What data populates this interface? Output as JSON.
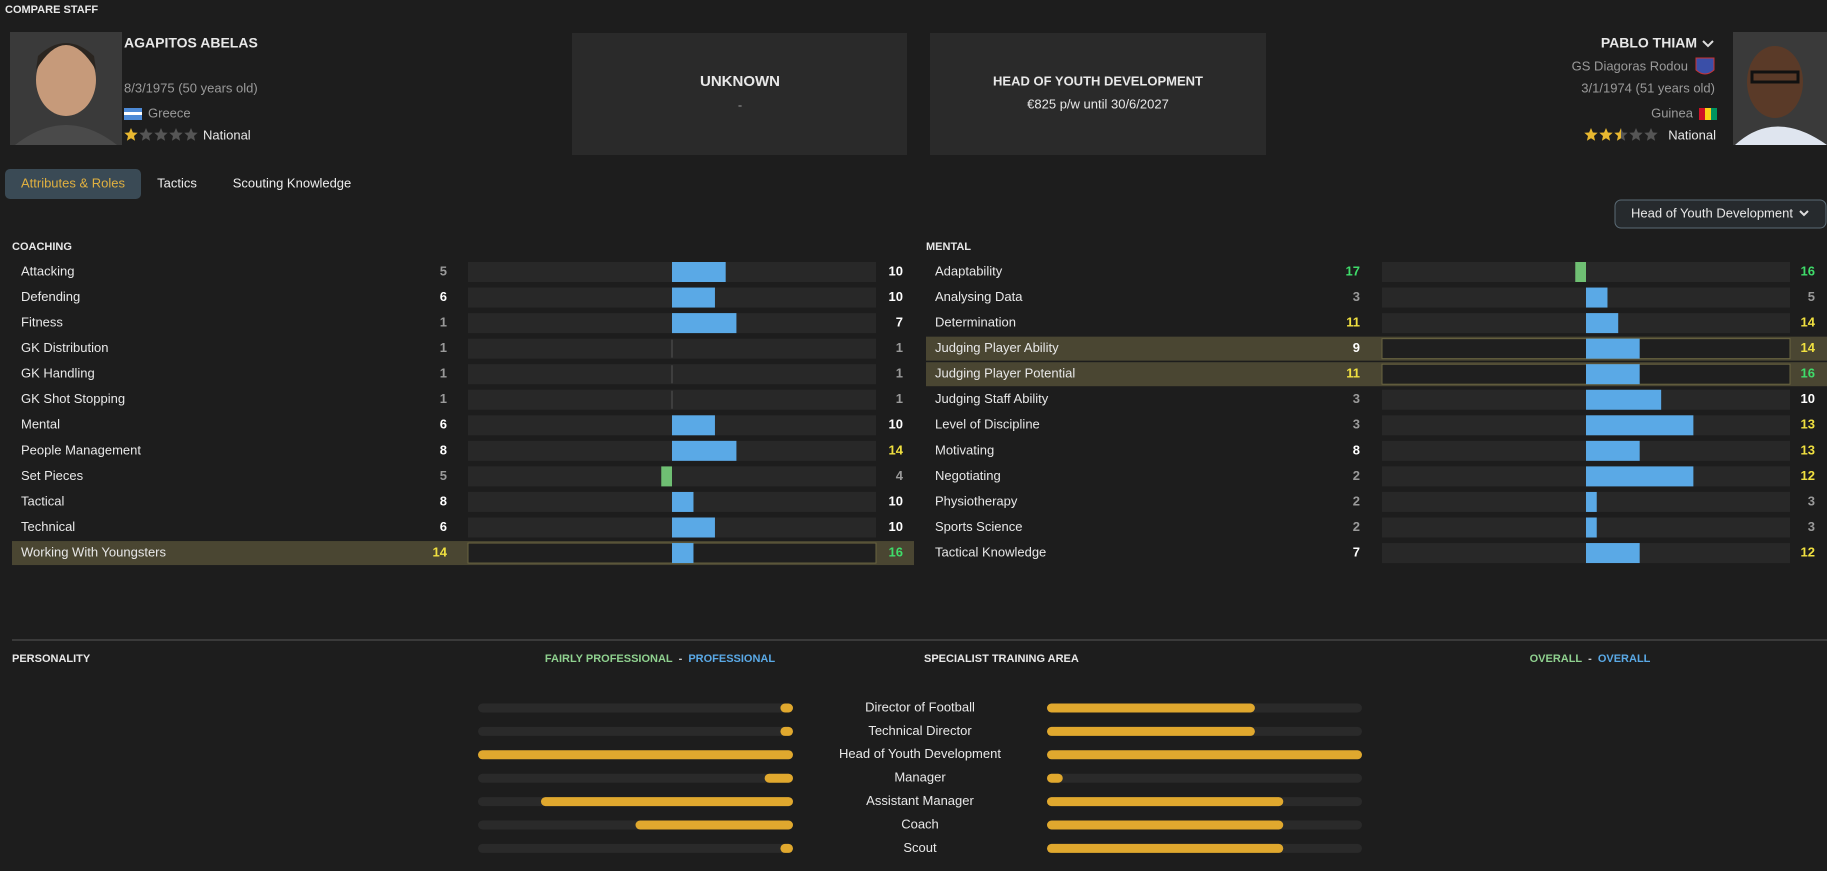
{
  "header": {
    "title": "COMPARE STAFF"
  },
  "staff": [
    {
      "name": "AGAPITOS ABELAS",
      "dob": "8/3/1975 (50 years old)",
      "nation": "Greece",
      "reputation": "National",
      "stars": 1
    },
    {
      "name": "PABLO THIAM",
      "club": "GS Diagoras Rodou",
      "dob": "3/1/1974 (51 years old)",
      "nation": "Guinea",
      "reputation": "National",
      "stars": 2.5
    }
  ],
  "cards": [
    {
      "title": "UNKNOWN",
      "detail": "-"
    },
    {
      "title": "HEAD OF YOUTH DEVELOPMENT",
      "detail": "€825 p/w until 30/6/2027"
    }
  ],
  "tabs": [
    {
      "label": "Attributes & Roles",
      "active": true
    },
    {
      "label": "Tactics"
    },
    {
      "label": "Scouting Knowledge"
    }
  ],
  "role_selector": "Head of Youth Development",
  "attribute_groups": [
    {
      "title": "COACHING",
      "rows": [
        {
          "name": "Attacking",
          "values": [
            5,
            10
          ]
        },
        {
          "name": "Defending",
          "values": [
            6,
            10
          ]
        },
        {
          "name": "Fitness",
          "values": [
            1,
            7
          ]
        },
        {
          "name": "GK Distribution",
          "values": [
            1,
            1
          ]
        },
        {
          "name": "GK Handling",
          "values": [
            1,
            1
          ]
        },
        {
          "name": "GK Shot Stopping",
          "values": [
            1,
            1
          ]
        },
        {
          "name": "Mental",
          "values": [
            6,
            10
          ]
        },
        {
          "name": "People Management",
          "values": [
            8,
            14
          ]
        },
        {
          "name": "Set Pieces",
          "values": [
            5,
            4
          ]
        },
        {
          "name": "Tactical",
          "values": [
            8,
            10
          ]
        },
        {
          "name": "Technical",
          "values": [
            6,
            10
          ]
        },
        {
          "name": "Working With Youngsters",
          "values": [
            14,
            16
          ],
          "key": true
        }
      ]
    },
    {
      "title": "MENTAL",
      "rows": [
        {
          "name": "Adaptability",
          "values": [
            17,
            16
          ]
        },
        {
          "name": "Analysing Data",
          "values": [
            3,
            5
          ]
        },
        {
          "name": "Determination",
          "values": [
            11,
            14
          ]
        },
        {
          "name": "Judging Player Ability",
          "values": [
            9,
            14
          ],
          "key": true
        },
        {
          "name": "Judging Player Potential",
          "values": [
            11,
            16
          ],
          "key": true
        },
        {
          "name": "Judging Staff Ability",
          "values": [
            3,
            10
          ]
        },
        {
          "name": "Level of Discipline",
          "values": [
            3,
            13
          ]
        },
        {
          "name": "Motivating",
          "values": [
            8,
            13
          ]
        },
        {
          "name": "Negotiating",
          "values": [
            2,
            12
          ]
        },
        {
          "name": "Physiotherapy",
          "values": [
            2,
            3
          ]
        },
        {
          "name": "Sports Science",
          "values": [
            2,
            3
          ]
        },
        {
          "name": "Tactical Knowledge",
          "values": [
            7,
            12
          ]
        }
      ]
    }
  ],
  "personality": {
    "title": "PERSONALITY",
    "left": "FAIRLY PROFESSIONAL",
    "separator": "-",
    "right": "PROFESSIONAL"
  },
  "specialist": {
    "title": "SPECIALIST TRAINING AREA",
    "left": "OVERALL",
    "separator": "-",
    "right": "OVERALL"
  },
  "role_ratings": [
    {
      "role": "Director of Football",
      "values": [
        4,
        66
      ]
    },
    {
      "role": "Technical Director",
      "values": [
        4,
        66
      ]
    },
    {
      "role": "Head of Youth Development",
      "values": [
        100,
        100
      ]
    },
    {
      "role": "Manager",
      "values": [
        9,
        5
      ]
    },
    {
      "role": "Assistant Manager",
      "values": [
        80,
        75
      ]
    },
    {
      "role": "Coach",
      "values": [
        50,
        75
      ]
    },
    {
      "role": "Scout",
      "values": [
        4,
        75
      ]
    }
  ]
}
